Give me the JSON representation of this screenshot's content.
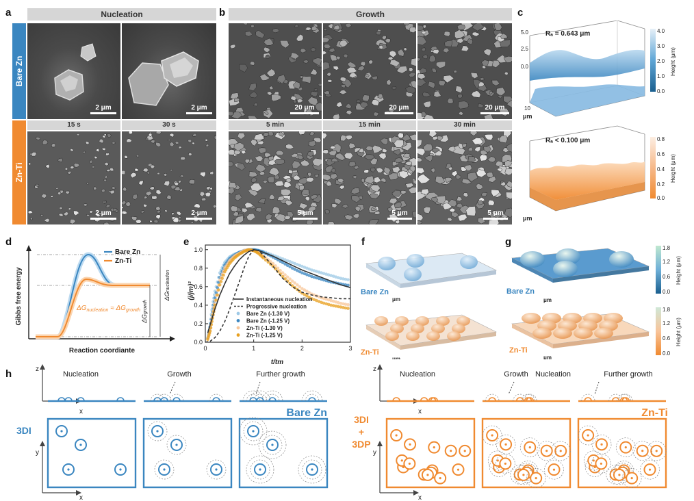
{
  "panel_labels": {
    "a": "a",
    "b": "b",
    "c": "c",
    "d": "d",
    "e": "e",
    "f": "f",
    "g": "g",
    "h": "h"
  },
  "headers": {
    "nucleation": "Nucleation",
    "growth": "Growth"
  },
  "rows": {
    "bare": "Bare Zn",
    "ti": "Zn-Ti"
  },
  "time_labels": {
    "a": [
      "15 s",
      "30 s"
    ],
    "b": [
      "5 min",
      "15 min",
      "30 min"
    ]
  },
  "scale_bars": {
    "a_top": [
      "2 μm",
      "2 μm"
    ],
    "a_bottom": [
      "2 μm",
      "2 μm"
    ],
    "b_top": [
      "20 μm",
      "20 μm",
      "20 μm"
    ],
    "b_bottom": [
      "5 μm",
      "5 μm",
      "5 μm"
    ]
  },
  "panel_c": {
    "top": {
      "ra": "Rₐ = 0.643 μm",
      "ticks": [
        "5.0",
        "2.5",
        "0.0"
      ],
      "mid_tick": "0.0",
      "cbar": [
        "4.0",
        "3.0",
        "2.0",
        "1.0",
        "0.0"
      ],
      "cbar_label": "Height (μm)",
      "axis": "μm",
      "depth_ticks": [
        "10",
        "5",
        "0"
      ],
      "colors": {
        "top": "#e6f0f8",
        "bottom": "#1a5f8f"
      }
    },
    "bottom": {
      "ra": "Rₐ < 0.100 μm",
      "cbar": [
        "0.8",
        "0.6",
        "0.4",
        "0.2",
        "0.0"
      ],
      "cbar_label": "Height (μm)",
      "axis": "μm",
      "colors": {
        "top": "#fdeee2",
        "bottom": "#f08a30"
      }
    }
  },
  "panel_d": {
    "ylabel": "Gibbs free energy",
    "xlabel": "Reaction coordiante",
    "legend": [
      {
        "name": "Bare Zn",
        "color": "#3a86c0"
      },
      {
        "name": "Zn-Ti",
        "color": "#f08a30"
      }
    ],
    "eq": "ΔG",
    "eq_sub1": "nucleation",
    "eq_mid": " ≈ ΔG",
    "eq_sub2": "growth",
    "dg_growth": "ΔG",
    "dg_growth_sub": "growth",
    "dg_nuc": "ΔG",
    "dg_nuc_sub": "nucleation"
  },
  "chart_data": {
    "type": "line",
    "title": "",
    "xlabel": "t/tm",
    "ylabel": "(j/jm)²",
    "xlim": [
      0,
      3
    ],
    "ylim": [
      0,
      1.05
    ],
    "xticks": [
      "0",
      "1",
      "2",
      "3"
    ],
    "yticks": [
      "0.0",
      "0.2",
      "0.4",
      "0.6",
      "0.8",
      "1.0"
    ],
    "legend_position": "bottom-right",
    "series": [
      {
        "name": "Instantaneous nucleation",
        "style": "solid",
        "color": "#333333",
        "x": [
          0.05,
          0.1,
          0.2,
          0.3,
          0.4,
          0.5,
          0.6,
          0.7,
          0.8,
          0.9,
          1.0,
          1.1,
          1.2,
          1.4,
          1.6,
          1.8,
          2.0,
          2.2,
          2.4,
          2.6,
          2.8,
          3.0
        ],
        "y": [
          0.1,
          0.19,
          0.36,
          0.51,
          0.63,
          0.74,
          0.82,
          0.89,
          0.94,
          0.98,
          1.0,
          0.99,
          0.97,
          0.93,
          0.88,
          0.83,
          0.78,
          0.74,
          0.7,
          0.66,
          0.62,
          0.59
        ]
      },
      {
        "name": "Progressive nucleation",
        "style": "dashed",
        "color": "#333333",
        "x": [
          0.0,
          0.1,
          0.2,
          0.3,
          0.4,
          0.5,
          0.6,
          0.7,
          0.8,
          0.9,
          1.0,
          1.1,
          1.2,
          1.4,
          1.6,
          1.8,
          2.0,
          2.2,
          2.4,
          2.6,
          2.8,
          3.0
        ],
        "y": [
          0.0,
          0.01,
          0.05,
          0.12,
          0.22,
          0.35,
          0.5,
          0.65,
          0.8,
          0.93,
          1.0,
          0.99,
          0.94,
          0.82,
          0.69,
          0.6,
          0.54,
          0.51,
          0.49,
          0.48,
          0.47,
          0.47
        ]
      },
      {
        "name": "Bare Zn (-1.30 V)",
        "style": "points",
        "color": "#9ec9e6",
        "x": [
          0.05,
          0.1,
          0.15,
          0.2,
          0.3,
          0.4,
          0.5,
          0.6,
          0.7,
          0.8,
          0.9,
          1.0,
          1.1,
          1.2,
          1.4,
          1.6,
          1.8,
          2.0,
          2.2,
          2.4,
          2.6,
          2.8,
          3.0
        ],
        "y": [
          0.05,
          0.2,
          0.4,
          0.55,
          0.75,
          0.86,
          0.92,
          0.95,
          0.97,
          0.99,
          1.0,
          1.0,
          0.99,
          0.98,
          0.94,
          0.9,
          0.86,
          0.82,
          0.78,
          0.75,
          0.72,
          0.69,
          0.67
        ]
      },
      {
        "name": "Bare Zn (-1.25 V)",
        "style": "points",
        "color": "#3a86c0",
        "x": [
          0.05,
          0.1,
          0.15,
          0.2,
          0.3,
          0.4,
          0.5,
          0.6,
          0.7,
          0.8,
          0.9,
          1.0,
          1.1,
          1.2,
          1.4,
          1.6,
          1.8,
          2.0,
          2.2,
          2.4,
          2.6,
          2.8,
          3.0
        ],
        "y": [
          0.04,
          0.16,
          0.33,
          0.48,
          0.7,
          0.83,
          0.9,
          0.94,
          0.97,
          0.99,
          1.0,
          1.0,
          0.99,
          0.97,
          0.92,
          0.86,
          0.8,
          0.75,
          0.71,
          0.68,
          0.65,
          0.63,
          0.61
        ]
      },
      {
        "name": "Zn-Ti (-1.30 V)",
        "style": "points",
        "color": "#f8c79a",
        "x": [
          0.05,
          0.1,
          0.15,
          0.2,
          0.3,
          0.4,
          0.5,
          0.6,
          0.7,
          0.8,
          0.9,
          1.0,
          1.1,
          1.2,
          1.4,
          1.6,
          1.8,
          2.0,
          2.2,
          2.4,
          2.6,
          2.8,
          3.0
        ],
        "y": [
          0.04,
          0.15,
          0.3,
          0.45,
          0.67,
          0.8,
          0.88,
          0.93,
          0.96,
          0.99,
          1.0,
          0.99,
          0.97,
          0.93,
          0.85,
          0.75,
          0.66,
          0.58,
          0.52,
          0.48,
          0.45,
          0.42,
          0.4
        ]
      },
      {
        "name": "Zn-Ti (-1.25 V)",
        "style": "points",
        "color": "#e8a020",
        "x": [
          0.05,
          0.1,
          0.15,
          0.2,
          0.3,
          0.4,
          0.5,
          0.6,
          0.7,
          0.8,
          0.9,
          1.0,
          1.1,
          1.2,
          1.4,
          1.6,
          1.8,
          2.0,
          2.2,
          2.4,
          2.6,
          2.8,
          3.0
        ],
        "y": [
          0.03,
          0.12,
          0.26,
          0.4,
          0.62,
          0.76,
          0.85,
          0.91,
          0.95,
          0.98,
          1.0,
          0.99,
          0.96,
          0.91,
          0.82,
          0.71,
          0.61,
          0.53,
          0.47,
          0.43,
          0.4,
          0.38,
          0.36
        ]
      }
    ]
  },
  "panel_f": {
    "bare": "Bare Zn",
    "ti": "Zn-Ti",
    "axis": "μm"
  },
  "panel_g": {
    "bare": "Bare Zn",
    "ti": "Zn-Ti",
    "axis": "μm",
    "cbar_top": [
      "1.8",
      "1.2",
      "0.6",
      "0.0"
    ],
    "cbar_bottom": [
      "1.8",
      "1.2",
      "0.6",
      "0.0"
    ],
    "cbar_label": "Height (μm)"
  },
  "panel_h": {
    "z": "z",
    "x": "x",
    "y": "y",
    "left": {
      "stages": [
        "Nucleation",
        "Growth",
        "Further growth"
      ],
      "material": "Bare Zn",
      "mode": "3DI",
      "color": "#3a86c0"
    },
    "right": {
      "stages": [
        "Nucleation",
        "Growth",
        "Nucleation",
        "Further growth"
      ],
      "material": "Zn-Ti",
      "mode": [
        "3DI",
        "+",
        "3DP"
      ],
      "color": "#f08a30"
    }
  }
}
